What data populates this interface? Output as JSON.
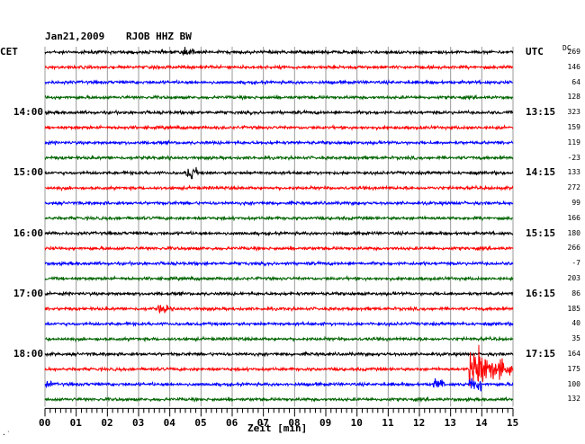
{
  "header": {
    "date": "Jan21,2009",
    "station": "RJOB HHZ BW",
    "left_timezone": "CET",
    "right_timezone": "UTC",
    "dc_label": "DC"
  },
  "footer": {
    "xlabel": "Zeit [min]",
    "corner_mark": "·˙"
  },
  "chart_data": {
    "type": "line",
    "title": "Jan21,2009  RJOB HHZ BW",
    "xlabel": "Zeit [min]",
    "ylabel": "",
    "xlim": [
      0,
      15
    ],
    "x_ticks": [
      "00",
      "01",
      "02",
      "03",
      "04",
      "05",
      "06",
      "07",
      "08",
      "09",
      "10",
      "11",
      "12",
      "13",
      "14",
      "15"
    ],
    "grid": true,
    "row_duration_min": 15,
    "colors": [
      "#000000",
      "#ff0000",
      "#0000ff",
      "#006400"
    ],
    "left_time_labels": [
      {
        "row": 4,
        "label": "14:00"
      },
      {
        "row": 8,
        "label": "15:00"
      },
      {
        "row": 12,
        "label": "16:00"
      },
      {
        "row": 16,
        "label": "17:00"
      },
      {
        "row": 20,
        "label": "18:00"
      }
    ],
    "right_time_labels": [
      {
        "row": 0,
        "label": "UTC"
      },
      {
        "row": 4,
        "label": "13:15"
      },
      {
        "row": 8,
        "label": "14:15"
      },
      {
        "row": 12,
        "label": "15:15"
      },
      {
        "row": 16,
        "label": "16:15"
      },
      {
        "row": 20,
        "label": "17:15"
      }
    ],
    "dc_offsets": [
      269,
      146,
      64,
      128,
      323,
      159,
      119,
      -23,
      133,
      272,
      99,
      166,
      180,
      266,
      -7,
      203,
      86,
      185,
      40,
      35,
      164,
      175,
      100,
      132
    ],
    "events": [
      {
        "row": 0,
        "minute": 4.6,
        "type": "burst",
        "amplitude": 0.35
      },
      {
        "row": 8,
        "minute": 4.7,
        "type": "burst",
        "amplitude": 0.45
      },
      {
        "row": 17,
        "minute": 3.8,
        "type": "burst",
        "amplitude": 0.3
      },
      {
        "row": 21,
        "minute": 13.6,
        "type": "earthquake",
        "amplitude": 1.0
      },
      {
        "row": 22,
        "minute": 13.6,
        "type": "earthquake_end",
        "amplitude": 0.5
      },
      {
        "row": 22,
        "minute": 0.1,
        "type": "onset",
        "amplitude": 0.3
      },
      {
        "row": 22,
        "minute": 12.6,
        "type": "burst",
        "amplitude": 0.35
      }
    ]
  }
}
